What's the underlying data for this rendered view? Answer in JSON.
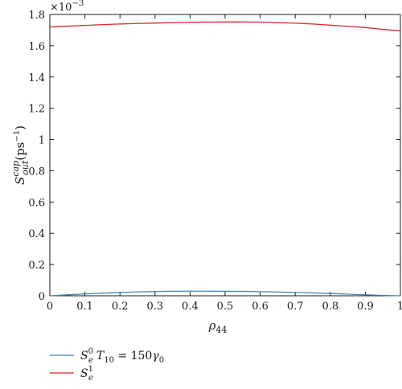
{
  "chart_data": {
    "type": "line",
    "x": [
      0,
      0.05,
      0.1,
      0.15,
      0.2,
      0.25,
      0.3,
      0.35,
      0.4,
      0.45,
      0.5,
      0.55,
      0.6,
      0.65,
      0.7,
      0.75,
      0.8,
      0.85,
      0.9,
      0.95,
      1.0
    ],
    "series": [
      {
        "name": "S_e^0 T_10 = 150γ_0",
        "color": "#3b86b8",
        "values": [
          0,
          6.2e-06,
          1.17e-05,
          1.67e-05,
          2.1e-05,
          2.45e-05,
          2.71e-05,
          2.88e-05,
          2.95e-05,
          2.95e-05,
          2.9e-05,
          2.8e-05,
          2.64e-05,
          2.42e-05,
          2.14e-05,
          1.81e-05,
          1.44e-05,
          1.04e-05,
          6.3e-06,
          2.4e-06,
          0
        ]
      },
      {
        "name": "S_e^1",
        "color": "#d9262b",
        "values": [
          0.00172,
          0.001725,
          0.00173,
          0.001735,
          0.001739,
          0.001742,
          0.001745,
          0.001748,
          0.00175,
          0.001751,
          0.001752,
          0.001752,
          0.001751,
          0.001748,
          0.001744,
          0.001739,
          0.001732,
          0.001724,
          0.001716,
          0.001705,
          0.001695
        ]
      }
    ],
    "xlim": [
      0,
      1
    ],
    "ylim": [
      0,
      0.0018
    ],
    "x_ticks": [
      "0",
      "0.1",
      "0.2",
      "0.3",
      "0.4",
      "0.5",
      "0.6",
      "0.7",
      "0.8",
      "0.9",
      "1"
    ],
    "y_ticks": [
      "0",
      "0.2",
      "0.4",
      "0.6",
      "0.8",
      "1",
      "1.2",
      "1.4",
      "1.6",
      "1.8"
    ],
    "y_multiplier": "×10",
    "y_multiplier_exp": "−3",
    "xlabel": "ρ",
    "xlabel_sub": "44",
    "ylabel": "S",
    "ylabel_sup": "cap",
    "ylabel_sub": "out",
    "ylabel_unit": "(ps",
    "ylabel_unit_exp": "−1",
    "ylabel_unit_close": ")",
    "grid": false,
    "legend_position": "bottom-left",
    "legend": {
      "entry0": {
        "base": "S",
        "sub": "e",
        "sup": "0",
        "t": "T",
        "t_sub": "10",
        "eq": " = 150",
        "gamma": "γ",
        "gamma_sub": "0"
      },
      "entry1": {
        "base": "S",
        "sub": "e",
        "sup": "1"
      }
    }
  }
}
